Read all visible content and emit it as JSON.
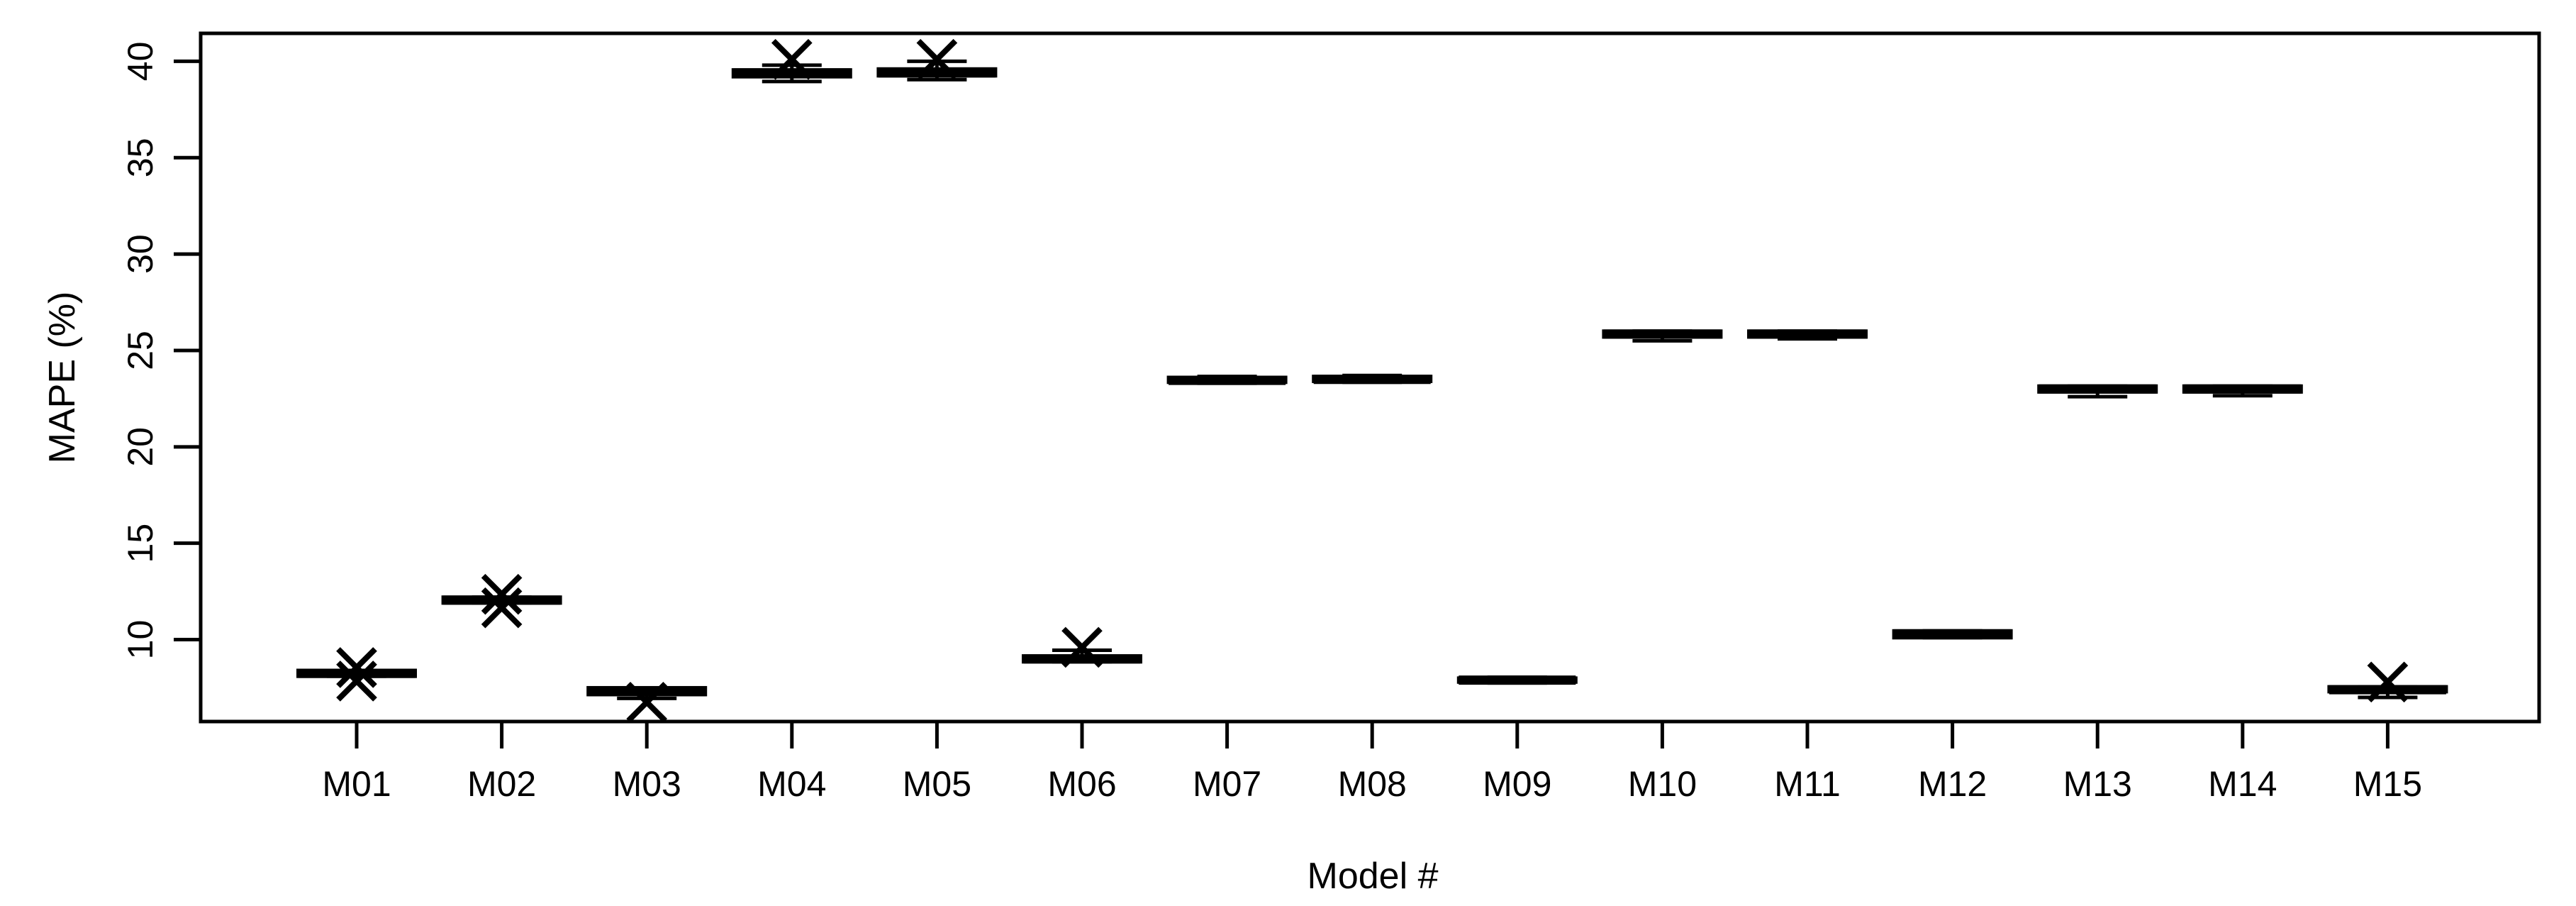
{
  "colors": {
    "foreground": "#000000",
    "background": "#ffffff"
  },
  "chart_data": {
    "type": "boxplot",
    "title": "",
    "xlabel": "Model #",
    "ylabel": "MAPE (%)",
    "x_tick_labels": [
      "M01",
      "M02",
      "M03",
      "M04",
      "M05",
      "M06",
      "M07",
      "M08",
      "M09",
      "M10",
      "M11",
      "M12",
      "M13",
      "M14",
      "M15"
    ],
    "y_ticks": [
      10,
      15,
      20,
      25,
      30,
      35,
      40
    ],
    "ylim": [
      5.75,
      41.45
    ],
    "grid": false,
    "legend_position": "none",
    "series": [
      {
        "label": "M01",
        "whisker_low": 8.1,
        "q1": 8.1,
        "median": 8.25,
        "q3": 8.4,
        "whisker_high": 8.4,
        "x_markers": [
          8.55,
          7.85
        ]
      },
      {
        "label": "M02",
        "whisker_low": 11.9,
        "q1": 11.9,
        "median": 12.05,
        "q3": 12.2,
        "whisker_high": 12.2,
        "x_markers": [
          12.35,
          11.65
        ]
      },
      {
        "label": "M03",
        "whisker_low": 6.95,
        "q1": 7.15,
        "median": 7.3,
        "q3": 7.5,
        "whisker_high": 7.5,
        "x_markers": [
          6.75
        ]
      },
      {
        "label": "M04",
        "whisker_low": 38.95,
        "q1": 39.2,
        "median": 39.4,
        "q3": 39.55,
        "whisker_high": 39.8,
        "x_markers": [
          40.1
        ]
      },
      {
        "label": "M05",
        "whisker_low": 39.05,
        "q1": 39.25,
        "median": 39.4,
        "q3": 39.6,
        "whisker_high": 40.0,
        "x_markers": [
          40.1
        ]
      },
      {
        "label": "M06",
        "whisker_low": 8.85,
        "q1": 8.85,
        "median": 9.0,
        "q3": 9.15,
        "whisker_high": 9.45,
        "x_markers": [
          9.6
        ]
      },
      {
        "label": "M07",
        "whisker_low": 23.3,
        "q1": 23.35,
        "median": 23.45,
        "q3": 23.6,
        "whisker_high": 23.65,
        "x_markers": []
      },
      {
        "label": "M08",
        "whisker_low": 23.35,
        "q1": 23.4,
        "median": 23.5,
        "q3": 23.65,
        "whisker_high": 23.7,
        "x_markers": []
      },
      {
        "label": "M09",
        "whisker_low": 7.75,
        "q1": 7.8,
        "median": 7.9,
        "q3": 8.0,
        "whisker_high": 8.05,
        "x_markers": []
      },
      {
        "label": "M10",
        "whisker_low": 25.5,
        "q1": 25.7,
        "median": 25.85,
        "q3": 26.0,
        "whisker_high": 26.0,
        "x_markers": []
      },
      {
        "label": "M11",
        "whisker_low": 25.6,
        "q1": 25.7,
        "median": 25.85,
        "q3": 26.0,
        "whisker_high": 26.0,
        "x_markers": []
      },
      {
        "label": "M12",
        "whisker_low": 10.1,
        "q1": 10.1,
        "median": 10.3,
        "q3": 10.45,
        "whisker_high": 10.45,
        "x_markers": []
      },
      {
        "label": "M13",
        "whisker_low": 22.6,
        "q1": 22.85,
        "median": 23.0,
        "q3": 23.15,
        "whisker_high": 23.15,
        "x_markers": []
      },
      {
        "label": "M14",
        "whisker_low": 22.65,
        "q1": 22.85,
        "median": 23.0,
        "q3": 23.15,
        "whisker_high": 23.15,
        "x_markers": []
      },
      {
        "label": "M15",
        "whisker_low": 7.0,
        "q1": 7.3,
        "median": 7.4,
        "q3": 7.55,
        "whisker_high": 7.55,
        "x_markers": [
          7.8
        ]
      }
    ]
  }
}
